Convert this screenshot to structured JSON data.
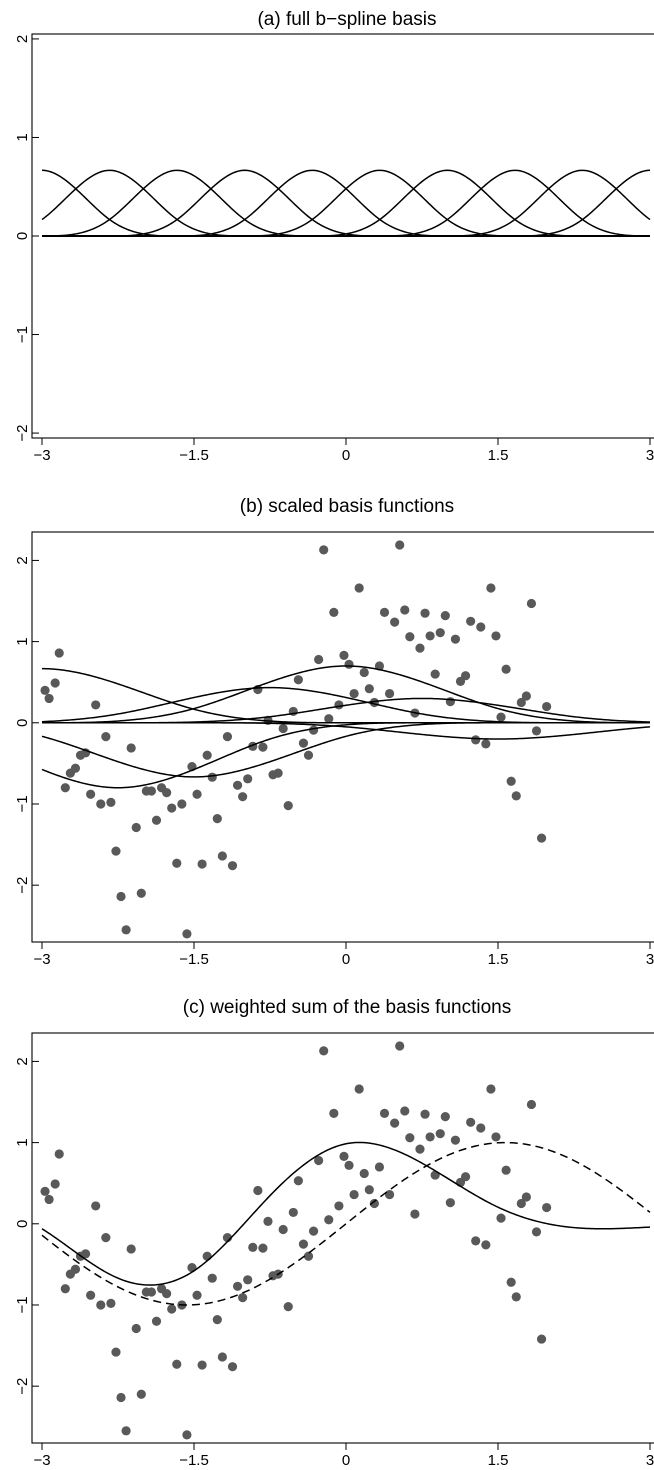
{
  "chart_data": [
    {
      "type": "line",
      "title": "(a) full b−spline basis",
      "xlim": [
        -3,
        3
      ],
      "ylim": [
        -2.05,
        2.05
      ],
      "x_ticks": [
        -3,
        -1.5,
        0,
        1.5,
        3
      ],
      "x_tick_labels": [
        "−3",
        "−1.5",
        "0",
        "1.5",
        "3"
      ],
      "y_ticks": [
        -2,
        -1,
        0,
        1,
        2
      ],
      "y_tick_labels": [
        "−2",
        "−1",
        "0",
        "1",
        "2"
      ],
      "grid": false,
      "legend": "none",
      "basis": {
        "degree": 3,
        "interior_knots": 9,
        "knot_spacing": 0.667
      },
      "series": [
        {
          "weight": 1,
          "peak_x": -3.0
        },
        {
          "weight": 1,
          "peak_x": -2.333
        },
        {
          "weight": 1,
          "peak_x": -1.667
        },
        {
          "weight": 1,
          "peak_x": -1.0
        },
        {
          "weight": 1,
          "peak_x": -0.333
        },
        {
          "weight": 1,
          "peak_x": 0.333
        },
        {
          "weight": 1,
          "peak_x": 1.0
        },
        {
          "weight": 1,
          "peak_x": 1.667
        },
        {
          "weight": 1,
          "peak_x": 2.333
        },
        {
          "weight": 1,
          "peak_x": 3.0
        }
      ],
      "peak_value": 0.667
    },
    {
      "type": "scatter",
      "title": "(b) scaled basis functions",
      "xlim": [
        -3,
        3
      ],
      "ylim": [
        -2.7,
        2.35
      ],
      "x_ticks": [
        -3,
        -1.5,
        0,
        1.5,
        3
      ],
      "x_tick_labels": [
        "−3",
        "−1.5",
        "0",
        "1.5",
        "3"
      ],
      "y_ticks": [
        -2,
        -1,
        0,
        1,
        2
      ],
      "y_tick_labels": [
        "−2",
        "−1",
        "0",
        "1",
        "2"
      ],
      "grid": false,
      "legend": "none",
      "basis": {
        "degree": 3,
        "interior_knots": 4,
        "knot_spacing": 1.5
      },
      "series": [
        {
          "weight": 1.0,
          "peak_x": -3.0
        },
        {
          "weight": -1.2,
          "peak_x": -1.5
        },
        {
          "weight": -1.0,
          "peak_x": 0.0
        },
        {
          "weight": 0.65,
          "peak_x": 1.5
        },
        {
          "weight": 1.05,
          "peak_x": 3.0
        },
        {
          "weight": 0.45,
          "peak_x": 4.5
        },
        {
          "weight": -0.3,
          "peak_x": 6.0
        }
      ],
      "points": [
        [
          -2.97,
          0.4
        ],
        [
          -2.93,
          0.3
        ],
        [
          -2.87,
          0.49
        ],
        [
          -2.83,
          0.86
        ],
        [
          -2.77,
          -0.8
        ],
        [
          -2.72,
          -0.62
        ],
        [
          -2.67,
          -0.56
        ],
        [
          -2.62,
          -0.4
        ],
        [
          -2.57,
          -0.37
        ],
        [
          -2.52,
          -0.88
        ],
        [
          -2.47,
          0.22
        ],
        [
          -2.42,
          -1.0
        ],
        [
          -2.37,
          -0.17
        ],
        [
          -2.32,
          -0.98
        ],
        [
          -2.27,
          -1.58
        ],
        [
          -2.22,
          -2.14
        ],
        [
          -2.17,
          -2.55
        ],
        [
          -2.12,
          -0.31
        ],
        [
          -2.07,
          -1.29
        ],
        [
          -2.02,
          -2.1
        ],
        [
          -1.97,
          -0.84
        ],
        [
          -1.92,
          -0.84
        ],
        [
          -1.87,
          -1.2
        ],
        [
          -1.82,
          -0.8
        ],
        [
          -1.77,
          -0.86
        ],
        [
          -1.72,
          -1.05
        ],
        [
          -1.67,
          -1.73
        ],
        [
          -1.62,
          -1.0
        ],
        [
          -1.57,
          -2.6
        ],
        [
          -1.52,
          -0.54
        ],
        [
          -1.47,
          -0.88
        ],
        [
          -1.42,
          -1.74
        ],
        [
          -1.37,
          -0.4
        ],
        [
          -1.32,
          -0.67
        ],
        [
          -1.27,
          -1.18
        ],
        [
          -1.22,
          -1.64
        ],
        [
          -1.17,
          -0.17
        ],
        [
          -1.12,
          -1.76
        ],
        [
          -1.07,
          -0.77
        ],
        [
          -1.02,
          -0.91
        ],
        [
          -0.97,
          -0.69
        ],
        [
          -0.92,
          -0.29
        ],
        [
          -0.87,
          0.41
        ],
        [
          -0.82,
          -0.3
        ],
        [
          -0.77,
          0.03
        ],
        [
          -0.72,
          -0.64
        ],
        [
          -0.67,
          -0.62
        ],
        [
          -0.62,
          -0.07
        ],
        [
          -0.57,
          -1.02
        ],
        [
          -0.52,
          0.14
        ],
        [
          -0.47,
          0.53
        ],
        [
          -0.42,
          -0.25
        ],
        [
          -0.37,
          -0.4
        ],
        [
          -0.32,
          -0.09
        ],
        [
          -0.27,
          0.78
        ],
        [
          -0.22,
          2.13
        ],
        [
          -0.17,
          0.05
        ],
        [
          -0.12,
          1.36
        ],
        [
          -0.07,
          0.22
        ],
        [
          -0.02,
          0.83
        ],
        [
          0.03,
          0.72
        ],
        [
          0.08,
          0.36
        ],
        [
          0.13,
          1.66
        ],
        [
          0.18,
          0.62
        ],
        [
          0.23,
          0.42
        ],
        [
          0.28,
          0.25
        ],
        [
          0.33,
          0.7
        ],
        [
          0.38,
          1.36
        ],
        [
          0.43,
          0.36
        ],
        [
          0.48,
          1.24
        ],
        [
          0.53,
          2.19
        ],
        [
          0.58,
          1.39
        ],
        [
          0.63,
          1.06
        ],
        [
          0.68,
          0.12
        ],
        [
          0.73,
          0.92
        ],
        [
          0.78,
          1.35
        ],
        [
          0.83,
          1.07
        ],
        [
          0.88,
          0.6
        ],
        [
          0.93,
          1.11
        ],
        [
          0.98,
          1.32
        ],
        [
          1.03,
          0.26
        ],
        [
          1.08,
          1.03
        ],
        [
          1.13,
          0.51
        ],
        [
          1.18,
          0.58
        ],
        [
          1.23,
          1.25
        ],
        [
          1.28,
          -0.21
        ],
        [
          1.33,
          1.18
        ],
        [
          1.38,
          -0.26
        ],
        [
          1.43,
          1.66
        ],
        [
          1.48,
          1.07
        ],
        [
          1.53,
          0.07
        ],
        [
          1.58,
          0.66
        ],
        [
          1.63,
          -0.72
        ],
        [
          1.68,
          -0.9
        ],
        [
          1.73,
          0.25
        ],
        [
          1.78,
          0.33
        ],
        [
          1.83,
          1.47
        ],
        [
          1.88,
          -0.1
        ],
        [
          1.93,
          -1.42
        ],
        [
          1.98,
          0.2
        ]
      ]
    },
    {
      "type": "scatter",
      "title": "(c) weighted sum of the basis functions",
      "xlim": [
        -3,
        3
      ],
      "ylim": [
        -2.7,
        2.35
      ],
      "x_ticks": [
        -3,
        -1.5,
        0,
        1.5,
        3
      ],
      "x_tick_labels": [
        "−3",
        "−1.5",
        "0",
        "1.5",
        "3"
      ],
      "y_ticks": [
        -2,
        -1,
        0,
        1,
        2
      ],
      "y_tick_labels": [
        "−2",
        "−1",
        "0",
        "1",
        "2"
      ],
      "grid": false,
      "legend": "none",
      "lines": [
        {
          "style": "solid",
          "kind": "weighted spline sum"
        },
        {
          "style": "dashed",
          "kind": "sine",
          "amplitude": 1.0,
          "phase_x": 0.0
        }
      ],
      "points_ref": "same as (b)"
    }
  ]
}
